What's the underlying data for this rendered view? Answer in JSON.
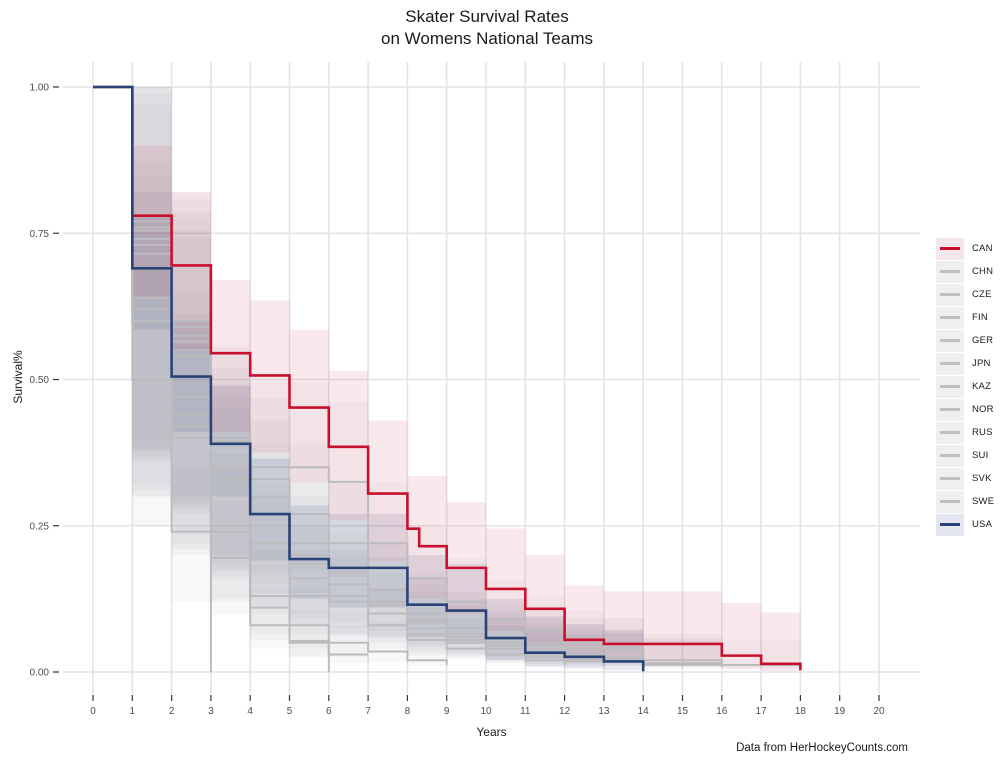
{
  "page": {
    "title_line1": "Skater Survival Rates",
    "title_line2": "on Womens National Teams",
    "caption": "Data from HerHockeyCounts.com"
  },
  "chart_data": {
    "type": "line",
    "subtype": "kaplan-meier-step-survival-curves",
    "title": "Skater Survival Rates on Womens National Teams",
    "xlabel": "Years",
    "ylabel": "Survival%",
    "xlim": [
      0,
      20
    ],
    "ylim": [
      0,
      1
    ],
    "x_ticks": [
      0,
      1,
      2,
      3,
      4,
      5,
      6,
      7,
      8,
      9,
      10,
      11,
      12,
      13,
      14,
      15,
      16,
      17,
      18,
      19,
      20
    ],
    "x_tick_labels": [
      "0",
      "1",
      "2",
      "3",
      "4",
      "5",
      "6",
      "7",
      "8",
      "9",
      "10",
      "11",
      "12",
      "13",
      "14",
      "15",
      "16",
      "17",
      "18",
      "19",
      "20"
    ],
    "y_ticks": [
      0,
      0.25,
      0.5,
      0.75,
      1.0
    ],
    "y_tick_labels": [
      "0.00",
      "0.25",
      "0.50",
      "0.75",
      "1.00"
    ],
    "grid": "major gridlines, white background",
    "legend_position": "right",
    "caption": "Data from HerHockeyCounts.com",
    "colors": {
      "can_red": "#C8102E",
      "usa_navy": "#2A4377",
      "other_gray": "#BCBCBE",
      "gridline": "#E4E4E6",
      "tick": "#333333",
      "can_band_fill": "rgba(200,16,46,0.09)",
      "usa_band_fill": "rgba(42,67,119,0.11)",
      "gray_band_fill": "rgba(115,115,135,0.05)"
    },
    "gray_band_factors": {
      "lo_factor": 0.5,
      "hi_factor": 1.3,
      "hi_add": 0.04
    },
    "series": [
      {
        "name": "CAN",
        "color": "#C8102E",
        "width": 2.6,
        "points": [
          [
            0,
            1
          ],
          [
            1,
            0.78
          ],
          [
            2,
            0.695
          ],
          [
            3,
            0.545
          ],
          [
            4,
            0.507
          ],
          [
            5,
            0.452
          ],
          [
            6,
            0.385
          ],
          [
            7,
            0.305
          ],
          [
            8,
            0.245
          ],
          [
            8.3,
            0.215
          ],
          [
            9,
            0.178
          ],
          [
            10,
            0.142
          ],
          [
            11,
            0.108
          ],
          [
            12,
            0.055
          ],
          [
            13,
            0.048
          ],
          [
            16,
            0.028
          ],
          [
            17,
            0.014
          ],
          [
            18,
            0.003
          ]
        ],
        "band": [
          [
            1,
            0.64,
            0.9
          ],
          [
            2,
            0.55,
            0.82
          ],
          [
            3,
            0.41,
            0.67
          ],
          [
            4,
            0.375,
            0.635
          ],
          [
            5,
            0.325,
            0.585
          ],
          [
            6,
            0.26,
            0.515
          ],
          [
            7,
            0.19,
            0.43
          ],
          [
            8,
            0.125,
            0.335
          ],
          [
            9,
            0.1,
            0.29
          ],
          [
            10,
            0.07,
            0.245
          ],
          [
            11,
            0.045,
            0.2
          ],
          [
            12,
            0.02,
            0.148
          ],
          [
            13,
            0.016,
            0.138
          ],
          [
            16,
            0.006,
            0.118
          ],
          [
            17,
            0.002,
            0.102
          ],
          [
            18,
            0.002,
            0.102
          ]
        ]
      },
      {
        "name": "CHN",
        "color": "#BCBCBE",
        "width": 2,
        "points": [
          [
            0,
            1
          ],
          [
            1,
            0.64
          ],
          [
            2,
            0.44
          ],
          [
            3,
            0.25
          ],
          [
            4,
            0.08
          ],
          [
            5,
            0.05
          ],
          [
            6,
            0.03
          ]
        ],
        "end_t": 7
      },
      {
        "name": "CZE",
        "color": "#BCBCBE",
        "width": 2,
        "points": [
          [
            0,
            1
          ],
          [
            1,
            0.715
          ],
          [
            2,
            0.54
          ],
          [
            3,
            0.35
          ],
          [
            4,
            0.2
          ],
          [
            5,
            0.13
          ],
          [
            7,
            0.1
          ],
          [
            8,
            0.065
          ],
          [
            9,
            0.05
          ],
          [
            10,
            0.03
          ],
          [
            12,
            0.02
          ],
          [
            14,
            0.01
          ]
        ],
        "end_t": 14
      },
      {
        "name": "FIN",
        "color": "#BCBCBE",
        "width": 2,
        "points": [
          [
            0,
            1
          ],
          [
            1,
            0.77
          ],
          [
            2,
            0.59
          ],
          [
            3,
            0.395
          ],
          [
            4,
            0.33
          ],
          [
            5,
            0.27
          ],
          [
            6,
            0.22
          ],
          [
            7,
            0.14
          ],
          [
            8,
            0.1
          ],
          [
            9,
            0.075
          ],
          [
            10,
            0.06
          ],
          [
            11,
            0.05
          ],
          [
            12,
            0.04
          ],
          [
            14,
            0.015
          ],
          [
            16,
            0.008
          ]
        ],
        "end_t": 16
      },
      {
        "name": "GER",
        "color": "#BCBCBE",
        "width": 2,
        "points": [
          [
            0,
            1
          ],
          [
            1,
            0.73
          ],
          [
            2,
            0.55
          ],
          [
            3,
            0.33
          ],
          [
            4,
            0.25
          ],
          [
            5,
            0.185
          ],
          [
            6,
            0.13
          ],
          [
            7,
            0.115
          ],
          [
            8,
            0.075
          ],
          [
            9,
            0.055
          ],
          [
            10,
            0.04
          ],
          [
            11,
            0.025
          ],
          [
            12,
            0.018
          ],
          [
            13,
            0.01
          ]
        ],
        "end_t": 13
      },
      {
        "name": "JPN",
        "color": "#BCBCBE",
        "width": 2,
        "points": [
          [
            0,
            1
          ],
          [
            1,
            0.755
          ],
          [
            2,
            0.575
          ],
          [
            3,
            0.37
          ],
          [
            4,
            0.3
          ],
          [
            5,
            0.22
          ],
          [
            6,
            0.17
          ],
          [
            7,
            0.12
          ],
          [
            8,
            0.085
          ],
          [
            9,
            0.06
          ],
          [
            10,
            0.045
          ],
          [
            11,
            0.035
          ],
          [
            12,
            0.025
          ],
          [
            13,
            0.02
          ],
          [
            14,
            0.006
          ]
        ],
        "end_t": 14
      },
      {
        "name": "KAZ",
        "color": "#BCBCBE",
        "width": 2,
        "points": [
          [
            0,
            1
          ],
          [
            1,
            0.5
          ],
          [
            2,
            0.24
          ],
          [
            3,
            0.0
          ]
        ]
      },
      {
        "name": "NOR",
        "color": "#BCBCBE",
        "width": 2,
        "points": [
          [
            0,
            1
          ],
          [
            1,
            0.6
          ],
          [
            2,
            0.4
          ],
          [
            3,
            0.195
          ],
          [
            4,
            0.11
          ],
          [
            5,
            0.053
          ],
          [
            6,
            0.0
          ]
        ]
      },
      {
        "name": "RUS",
        "color": "#BCBCBE",
        "width": 2,
        "points": [
          [
            0,
            1
          ],
          [
            1,
            0.74
          ],
          [
            2,
            0.565
          ],
          [
            3,
            0.345
          ],
          [
            4,
            0.27
          ],
          [
            5,
            0.2
          ],
          [
            6,
            0.15
          ],
          [
            7,
            0.12
          ],
          [
            8,
            0.09
          ],
          [
            9,
            0.065
          ],
          [
            10,
            0.05
          ],
          [
            11,
            0.04
          ],
          [
            12,
            0.03
          ],
          [
            13,
            0.024
          ],
          [
            14,
            0.02
          ],
          [
            16,
            0.01
          ]
        ],
        "end_t": 16
      },
      {
        "name": "SUI",
        "color": "#BCBCBE",
        "width": 2,
        "points": [
          [
            0,
            1
          ],
          [
            1,
            0.62
          ],
          [
            2,
            0.47
          ],
          [
            3,
            0.315
          ],
          [
            4,
            0.22
          ],
          [
            5,
            0.16
          ],
          [
            6,
            0.12
          ],
          [
            7,
            0.08
          ],
          [
            8,
            0.055
          ],
          [
            9,
            0.04
          ],
          [
            10,
            0.03
          ],
          [
            11,
            0.02
          ],
          [
            12,
            0.012
          ]
        ],
        "end_t": 12
      },
      {
        "name": "SVK",
        "color": "#BCBCBE",
        "width": 2,
        "points": [
          [
            0,
            1
          ],
          [
            1,
            0.6
          ],
          [
            2,
            0.42
          ],
          [
            3,
            0.24
          ],
          [
            4,
            0.13
          ],
          [
            5,
            0.08
          ],
          [
            6,
            0.05
          ],
          [
            7,
            0.035
          ],
          [
            8,
            0.02
          ],
          [
            9,
            0.012
          ]
        ],
        "end_t": 9
      },
      {
        "name": "SWE",
        "color": "#BCBCBE",
        "width": 2,
        "points": [
          [
            0,
            1
          ],
          [
            1,
            0.76
          ],
          [
            2,
            0.6
          ],
          [
            3,
            0.4
          ],
          [
            4,
            0.35
          ],
          [
            6,
            0.325
          ],
          [
            7,
            0.22
          ],
          [
            8,
            0.16
          ],
          [
            9,
            0.12
          ],
          [
            10,
            0.09
          ],
          [
            11,
            0.07
          ],
          [
            12,
            0.05
          ],
          [
            13,
            0.04
          ],
          [
            14,
            0.012
          ],
          [
            18,
            0.004
          ]
        ]
      },
      {
        "name": "USA",
        "color": "#2A4377",
        "width": 2.6,
        "points": [
          [
            0,
            1
          ],
          [
            1,
            0.69
          ],
          [
            2,
            0.505
          ],
          [
            3,
            0.39
          ],
          [
            4,
            0.27
          ],
          [
            5,
            0.193
          ],
          [
            6,
            0.178
          ],
          [
            8,
            0.115
          ],
          [
            9,
            0.105
          ],
          [
            10,
            0.058
          ],
          [
            11,
            0.033
          ],
          [
            12,
            0.026
          ],
          [
            13,
            0.018
          ],
          [
            14,
            0.001
          ]
        ],
        "band": [
          [
            1,
            0.585,
            0.78
          ],
          [
            2,
            0.41,
            0.6
          ],
          [
            3,
            0.3,
            0.49
          ],
          [
            4,
            0.19,
            0.365
          ],
          [
            5,
            0.125,
            0.285
          ],
          [
            6,
            0.11,
            0.27
          ],
          [
            8,
            0.06,
            0.2
          ],
          [
            9,
            0.05,
            0.185
          ],
          [
            10,
            0.02,
            0.125
          ],
          [
            11,
            0.009,
            0.095
          ],
          [
            12,
            0.006,
            0.082
          ],
          [
            13,
            0.003,
            0.072
          ],
          [
            14,
            0.003,
            0.072
          ]
        ]
      }
    ]
  },
  "legend": {
    "entries": [
      {
        "label": "CAN",
        "line": "#C8102E",
        "key_bg": "#F4E7EB"
      },
      {
        "label": "CHN",
        "line": "#C0C0C2",
        "key_bg": "#EFEFEF"
      },
      {
        "label": "CZE",
        "line": "#C0C0C2",
        "key_bg": "#EFEFEF"
      },
      {
        "label": "FIN",
        "line": "#C0C0C2",
        "key_bg": "#EFEFEF"
      },
      {
        "label": "GER",
        "line": "#C0C0C2",
        "key_bg": "#EFEFEF"
      },
      {
        "label": "JPN",
        "line": "#C0C0C2",
        "key_bg": "#EFEFEF"
      },
      {
        "label": "KAZ",
        "line": "#C0C0C2",
        "key_bg": "#EFEFEF"
      },
      {
        "label": "NOR",
        "line": "#C0C0C2",
        "key_bg": "#EFEFEF"
      },
      {
        "label": "RUS",
        "line": "#C0C0C2",
        "key_bg": "#EFEFEF"
      },
      {
        "label": "SUI",
        "line": "#C0C0C2",
        "key_bg": "#EFEFEF"
      },
      {
        "label": "SVK",
        "line": "#C0C0C2",
        "key_bg": "#EFEFEF"
      },
      {
        "label": "SWE",
        "line": "#C0C0C2",
        "key_bg": "#EFEFEF"
      },
      {
        "label": "USA",
        "line": "#2A4377",
        "key_bg": "#E4E7F0"
      }
    ]
  }
}
